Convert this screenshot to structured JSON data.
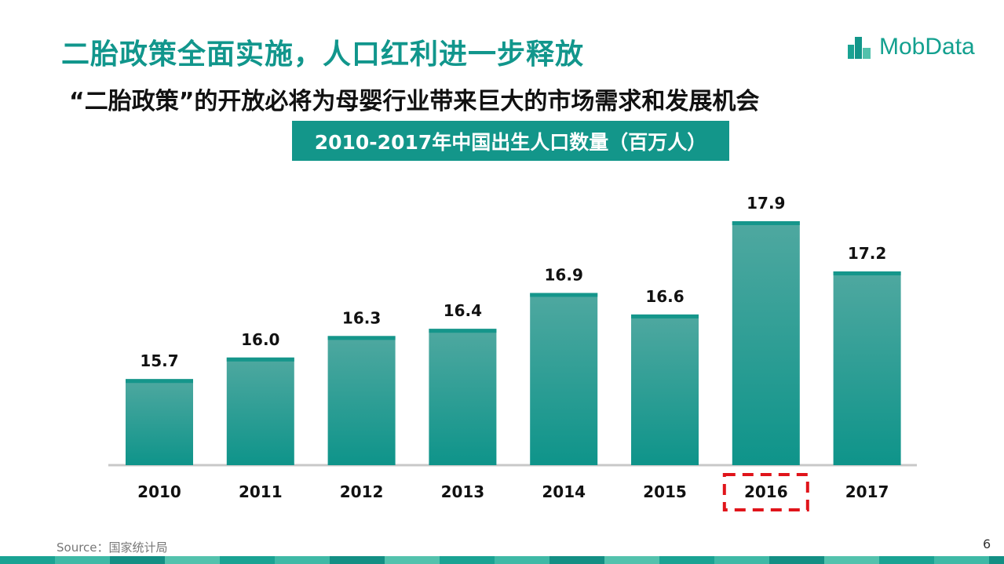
{
  "page": {
    "title": "二胎政策全面实施，人口红利进一步释放",
    "subtitle": "“二胎政策”的开放必将为母婴行业带来巨大的市场需求和发展机会",
    "logo_text": "MobData",
    "source": "Source：国家统计局",
    "page_number": "6"
  },
  "colors": {
    "accent": "#11968c",
    "bar": "#15968b",
    "bar_top": "#46a59c",
    "highlight": "#e0141a"
  },
  "chart_data": {
    "type": "bar",
    "title": "2010-2017年中国出生人口数量（百万人）",
    "categories": [
      "2010",
      "2011",
      "2012",
      "2013",
      "2014",
      "2015",
      "2016",
      "2017"
    ],
    "values": [
      15.7,
      16.0,
      16.3,
      16.4,
      16.9,
      16.6,
      17.9,
      17.2
    ],
    "value_labels": [
      "15.7",
      "16.0",
      "16.3",
      "16.4",
      "16.9",
      "16.6",
      "17.9",
      "17.2"
    ],
    "highlighted_category": "2016",
    "grid": false,
    "legend": "none"
  }
}
